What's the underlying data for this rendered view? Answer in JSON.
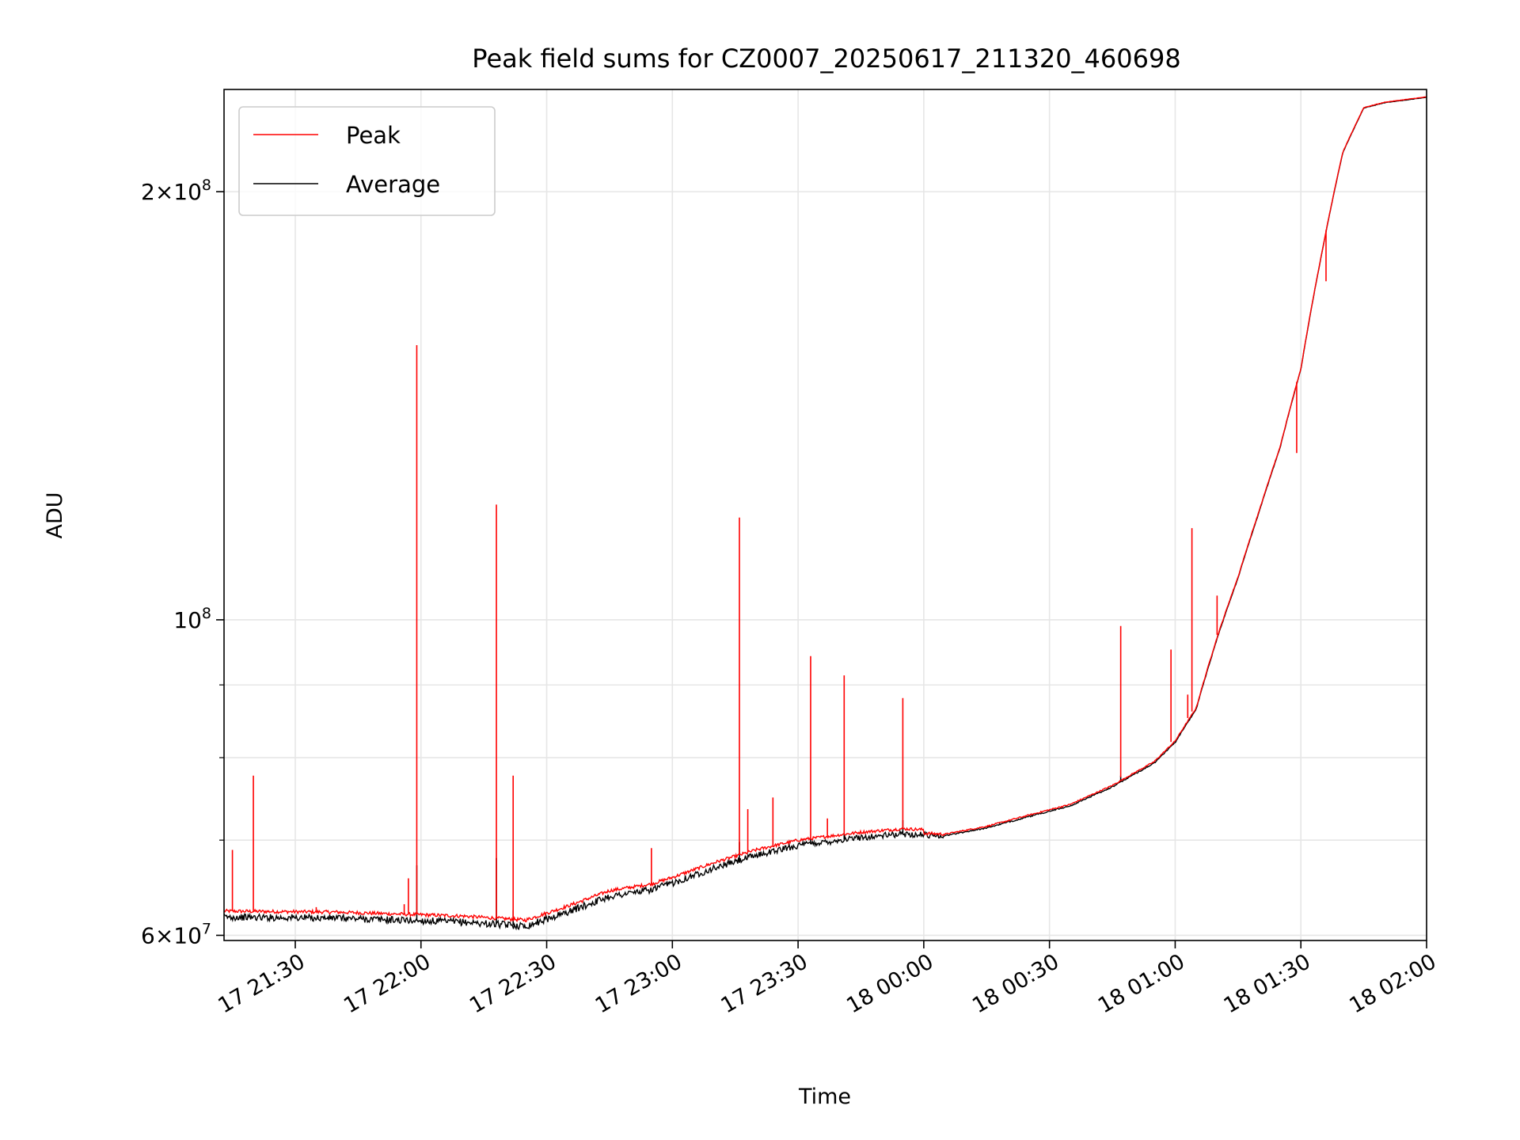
{
  "chart_data": {
    "type": "line",
    "title": "Peak field sums for CZ0007_20250617_211320_460698",
    "xlabel": "Time",
    "ylabel": "ADU",
    "yscale": "log",
    "ylim": [
      59500000,
      236000000
    ],
    "xlim": [
      "17 21:13",
      "18 02:00"
    ],
    "grid": true,
    "legend_position": "top-left",
    "x_ticks": [
      "17 21:30",
      "17 22:00",
      "17 22:30",
      "17 23:00",
      "17 23:30",
      "18 00:00",
      "18 00:30",
      "18 01:00",
      "18 01:30",
      "18 02:00"
    ],
    "y_ticks": [
      {
        "value": 60000000,
        "mantissa": "6",
        "exponent": "7"
      },
      {
        "value": 100000000,
        "mantissa": "",
        "exponent": "8"
      },
      {
        "value": 200000000,
        "mantissa": "2",
        "exponent": "8"
      }
    ],
    "y_minor_ticks": [
      70000000,
      80000000,
      90000000
    ],
    "average_baseline": {
      "x": [
        "17 21:13",
        "17 21:40",
        "17 22:10",
        "17 22:25",
        "17 22:35",
        "17 22:45",
        "17 22:55",
        "17 23:00",
        "17 23:10",
        "17 23:20",
        "17 23:30",
        "17 23:45",
        "17 23:55",
        "18 00:05",
        "18 00:15",
        "18 00:25",
        "18 00:35",
        "18 00:45",
        "18 00:55",
        "18 01:00",
        "18 01:05",
        "18 01:10",
        "18 01:15",
        "18 01:20",
        "18 01:25",
        "18 01:30",
        "18 01:35",
        "18 01:40",
        "18 01:45",
        "18 01:50",
        "18 02:00"
      ],
      "y": [
        61800000,
        61700000,
        61300000,
        60900000,
        62300000,
        63900000,
        64600000,
        65300000,
        66900000,
        68300000,
        69400000,
        70300000,
        70700000,
        70500000,
        71400000,
        72700000,
        74000000,
        76300000,
        79300000,
        82000000,
        86500000,
        97000000,
        107000000,
        119000000,
        132000000,
        150000000,
        181000000,
        213000000,
        229000000,
        231000000,
        233000000
      ]
    },
    "series": [
      {
        "name": "Peak",
        "color": "#ff0000",
        "offset": 600000,
        "spikes": [
          {
            "x": "17 21:15",
            "y": 68900000
          },
          {
            "x": "17 21:20",
            "y": 77700000
          },
          {
            "x": "17 21:35",
            "y": 62800000
          },
          {
            "x": "17 21:56",
            "y": 63100000
          },
          {
            "x": "17 21:57",
            "y": 65800000
          },
          {
            "x": "17 21:59",
            "y": 156000000
          },
          {
            "x": "17 22:18",
            "y": 120500000
          },
          {
            "x": "17 22:22",
            "y": 77700000
          },
          {
            "x": "17 22:55",
            "y": 69100000
          },
          {
            "x": "17 23:16",
            "y": 118000000
          },
          {
            "x": "17 23:18",
            "y": 73600000
          },
          {
            "x": "17 23:24",
            "y": 75000000
          },
          {
            "x": "17 23:33",
            "y": 94300000
          },
          {
            "x": "17 23:37",
            "y": 72500000
          },
          {
            "x": "17 23:41",
            "y": 91400000
          },
          {
            "x": "17 23:55",
            "y": 88100000
          },
          {
            "x": "18 00:47",
            "y": 99000000
          },
          {
            "x": "18 00:59",
            "y": 95300000
          },
          {
            "x": "18 01:03",
            "y": 88600000
          },
          {
            "x": "18 01:04",
            "y": 116000000
          },
          {
            "x": "18 01:10",
            "y": 104000000
          },
          {
            "x": "18 01:29",
            "y": 131000000
          },
          {
            "x": "18 01:36",
            "y": 173000000
          }
        ]
      },
      {
        "name": "Average",
        "color": "#000000",
        "offset": 0,
        "spikes": [
          {
            "x": "17 21:59",
            "y": 67200000
          },
          {
            "x": "17 22:18",
            "y": 68000000
          },
          {
            "x": "17 22:22",
            "y": 62500000
          },
          {
            "x": "17 23:16",
            "y": 69800000
          },
          {
            "x": "17 23:33",
            "y": 70100000
          },
          {
            "x": "17 23:41",
            "y": 70800000
          },
          {
            "x": "17 23:55",
            "y": 72300000
          },
          {
            "x": "18 00:47",
            "y": 77700000
          },
          {
            "x": "18 00:59",
            "y": 81500000
          }
        ]
      }
    ]
  }
}
